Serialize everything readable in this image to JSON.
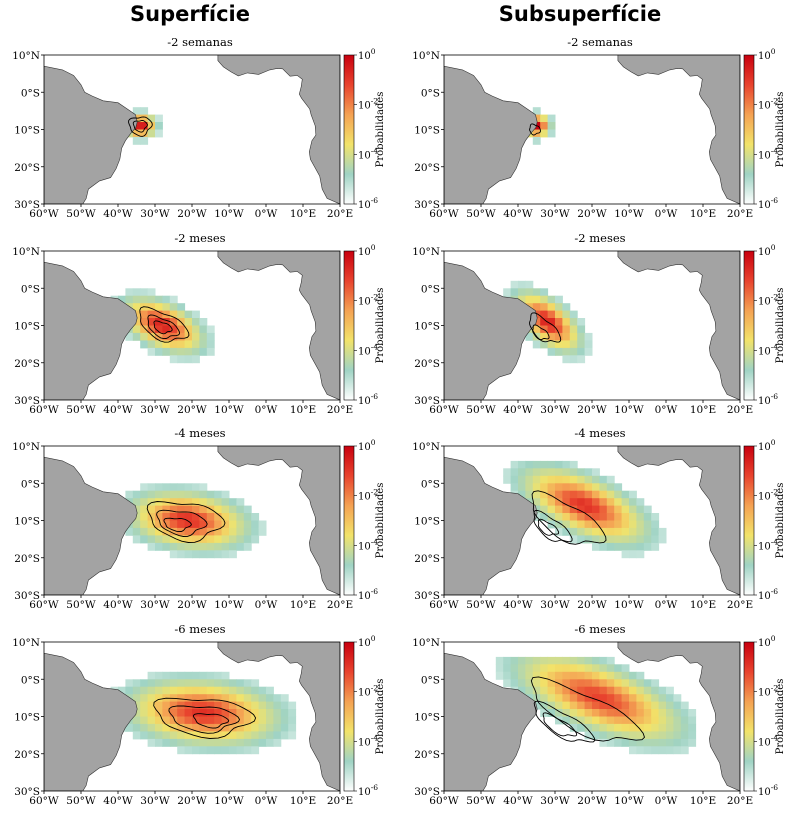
{
  "column_titles": [
    "Superfície",
    "Subsuperfície"
  ],
  "map_extent": {
    "lon": [
      -60,
      20
    ],
    "lat": [
      -30,
      10
    ]
  },
  "lon_ticks": [
    "60°W",
    "50°W",
    "40°W",
    "30°W",
    "20°W",
    "10°W",
    "0°W",
    "10°E",
    "20°E"
  ],
  "lat_ticks": [
    "10°N",
    "0°S",
    "10°S",
    "20°S",
    "30°S"
  ],
  "colorbar": {
    "label": "Probabilidades",
    "ticks": [
      {
        "base": "10",
        "exp": "0"
      },
      {
        "base": "10",
        "exp": "-2"
      },
      {
        "base": "10",
        "exp": "-4"
      },
      {
        "base": "10",
        "exp": "-6"
      }
    ],
    "colors": [
      "#ffffff",
      "#9fd3c4",
      "#f2e36a",
      "#f4a253",
      "#e8432e",
      "#c8000f"
    ]
  },
  "colors": {
    "land": "#a3a3a3",
    "ocean": "#ffffff",
    "contour": "#000000"
  },
  "panels": [
    {
      "title": "-2 semanas",
      "col": 0,
      "row": 0
    },
    {
      "title": "-2 semanas",
      "col": 1,
      "row": 0
    },
    {
      "title": "-2 meses",
      "col": 0,
      "row": 1
    },
    {
      "title": "-2 meses",
      "col": 1,
      "row": 1
    },
    {
      "title": "-4 meses",
      "col": 0,
      "row": 2
    },
    {
      "title": "-4 meses",
      "col": 1,
      "row": 2
    },
    {
      "title": "-6 meses",
      "col": 0,
      "row": 3
    },
    {
      "title": "-6 meses",
      "col": 1,
      "row": 3
    }
  ]
}
